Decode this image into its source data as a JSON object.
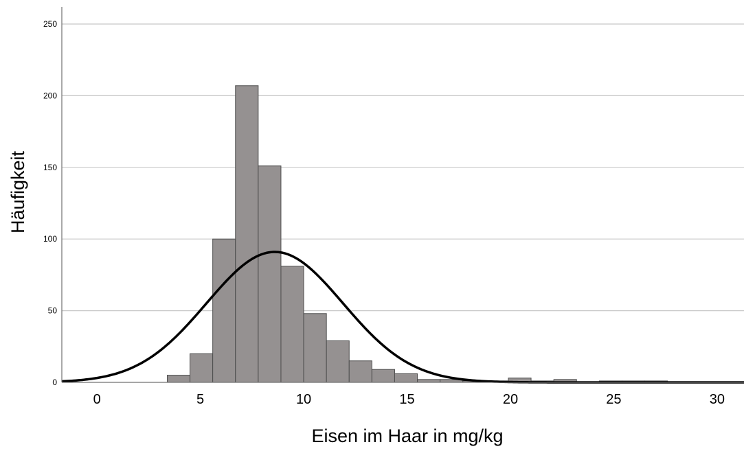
{
  "chart_data": {
    "type": "bar",
    "xlabel": "Eisen im Haar in mg/kg",
    "ylabel": "Häufigkeit",
    "xlim": [
      -1.7,
      31.3
    ],
    "ylim": [
      0,
      250
    ],
    "x_ticks": [
      "0",
      "5",
      "10",
      "15",
      "20",
      "25",
      "30"
    ],
    "y_ticks": [
      "0",
      "50",
      "100",
      "150",
      "200",
      "250"
    ],
    "grid": true,
    "bin_width": 1.1,
    "bin_starts": [
      3.4,
      4.5,
      5.6,
      6.7,
      7.8,
      8.9,
      10.0,
      11.1,
      12.2,
      13.3,
      14.4,
      15.5,
      16.6,
      17.7,
      18.8,
      19.9,
      21.0,
      22.1,
      23.2,
      24.3,
      25.4,
      26.5,
      27.6
    ],
    "values": [
      5,
      20,
      100,
      207,
      151,
      81,
      48,
      29,
      15,
      9,
      6,
      2,
      2,
      1,
      1,
      3,
      1,
      2,
      0,
      1,
      1,
      1,
      0
    ],
    "normal_curve": {
      "mean": 8.6,
      "sd": 3.3,
      "peak": 91,
      "color": "#000000"
    },
    "colors": {
      "bar_fill": "#959191",
      "bar_stroke": "#4d4d4d",
      "grid": "#c8c8c8"
    }
  }
}
